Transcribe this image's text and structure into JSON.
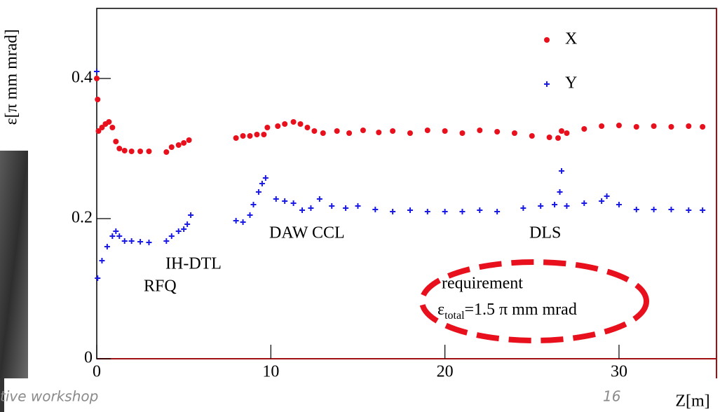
{
  "chart_data": {
    "type": "scatter",
    "y_label": "ε[π mm mrad]",
    "x_label": "Z[m]",
    "xlim": [
      0,
      35.6
    ],
    "ylim": [
      0,
      0.5
    ],
    "xticks": [
      0,
      10,
      20,
      30
    ],
    "yticks": [
      0,
      0.2,
      0.4
    ],
    "legend": "upper right",
    "series": [
      {
        "name": "X",
        "color": "#e8101c",
        "marker": "circle",
        "x": [
          0,
          0.05,
          0.1,
          0.3,
          0.5,
          0.7,
          0.9,
          1.1,
          1.3,
          1.6,
          2.0,
          2.5,
          3.0,
          4.0,
          4.3,
          4.7,
          5.0,
          5.3,
          8.0,
          8.4,
          8.8,
          9.2,
          9.6,
          9.8,
          10.4,
          10.8,
          11.3,
          11.7,
          12.1,
          12.5,
          13.0,
          13.8,
          14.5,
          15.3,
          16.2,
          17,
          18,
          19,
          20,
          21,
          22,
          23,
          24,
          25,
          26,
          26.5,
          26.7,
          27,
          28,
          29,
          30,
          31,
          32,
          33,
          34,
          34.8
        ],
        "values": [
          0.4,
          0.37,
          0.325,
          0.33,
          0.335,
          0.338,
          0.33,
          0.31,
          0.3,
          0.297,
          0.296,
          0.296,
          0.296,
          0.295,
          0.302,
          0.305,
          0.308,
          0.312,
          0.315,
          0.318,
          0.318,
          0.32,
          0.32,
          0.33,
          0.332,
          0.335,
          0.338,
          0.335,
          0.33,
          0.325,
          0.322,
          0.325,
          0.322,
          0.326,
          0.323,
          0.325,
          0.322,
          0.326,
          0.325,
          0.322,
          0.326,
          0.324,
          0.322,
          0.318,
          0.316,
          0.315,
          0.325,
          0.322,
          0.328,
          0.332,
          0.333,
          0.331,
          0.332,
          0.331,
          0.332,
          0.331
        ]
      },
      {
        "name": "Y",
        "color": "#1a1ae6",
        "marker": "plus",
        "x": [
          0,
          0.05,
          0.3,
          0.6,
          0.9,
          1.1,
          1.3,
          1.6,
          2.0,
          2.5,
          3.0,
          4.0,
          4.3,
          4.7,
          5.0,
          5.2,
          5.4,
          8.0,
          8.4,
          8.8,
          9.0,
          9.3,
          9.5,
          9.7,
          10.3,
          10.8,
          11.3,
          11.8,
          12.3,
          12.8,
          13.5,
          14.3,
          15,
          16,
          17,
          18,
          19,
          20,
          21,
          22,
          23,
          24.5,
          25.5,
          26.3,
          26.6,
          26.7,
          27,
          28,
          29,
          29.3,
          30,
          31,
          32,
          33,
          34,
          34.8
        ],
        "values": [
          0.41,
          0.115,
          0.14,
          0.16,
          0.175,
          0.182,
          0.175,
          0.168,
          0.168,
          0.167,
          0.166,
          0.168,
          0.175,
          0.182,
          0.185,
          0.192,
          0.205,
          0.197,
          0.195,
          0.205,
          0.22,
          0.238,
          0.25,
          0.258,
          0.228,
          0.225,
          0.222,
          0.212,
          0.215,
          0.228,
          0.218,
          0.215,
          0.218,
          0.213,
          0.21,
          0.212,
          0.21,
          0.21,
          0.21,
          0.212,
          0.21,
          0.215,
          0.218,
          0.22,
          0.238,
          0.268,
          0.218,
          0.222,
          0.225,
          0.232,
          0.22,
          0.213,
          0.213,
          0.213,
          0.212,
          0.212
        ]
      }
    ],
    "annotations": [
      "RFQ",
      "IH-DTL",
      "DAW CCL",
      "DLS"
    ],
    "requirement": {
      "title": "requirement",
      "symbol": "ε",
      "subscript": "total",
      "text": "=1.5 π mm mrad"
    }
  },
  "footer": {
    "left": "tive workshop",
    "page": "16"
  }
}
